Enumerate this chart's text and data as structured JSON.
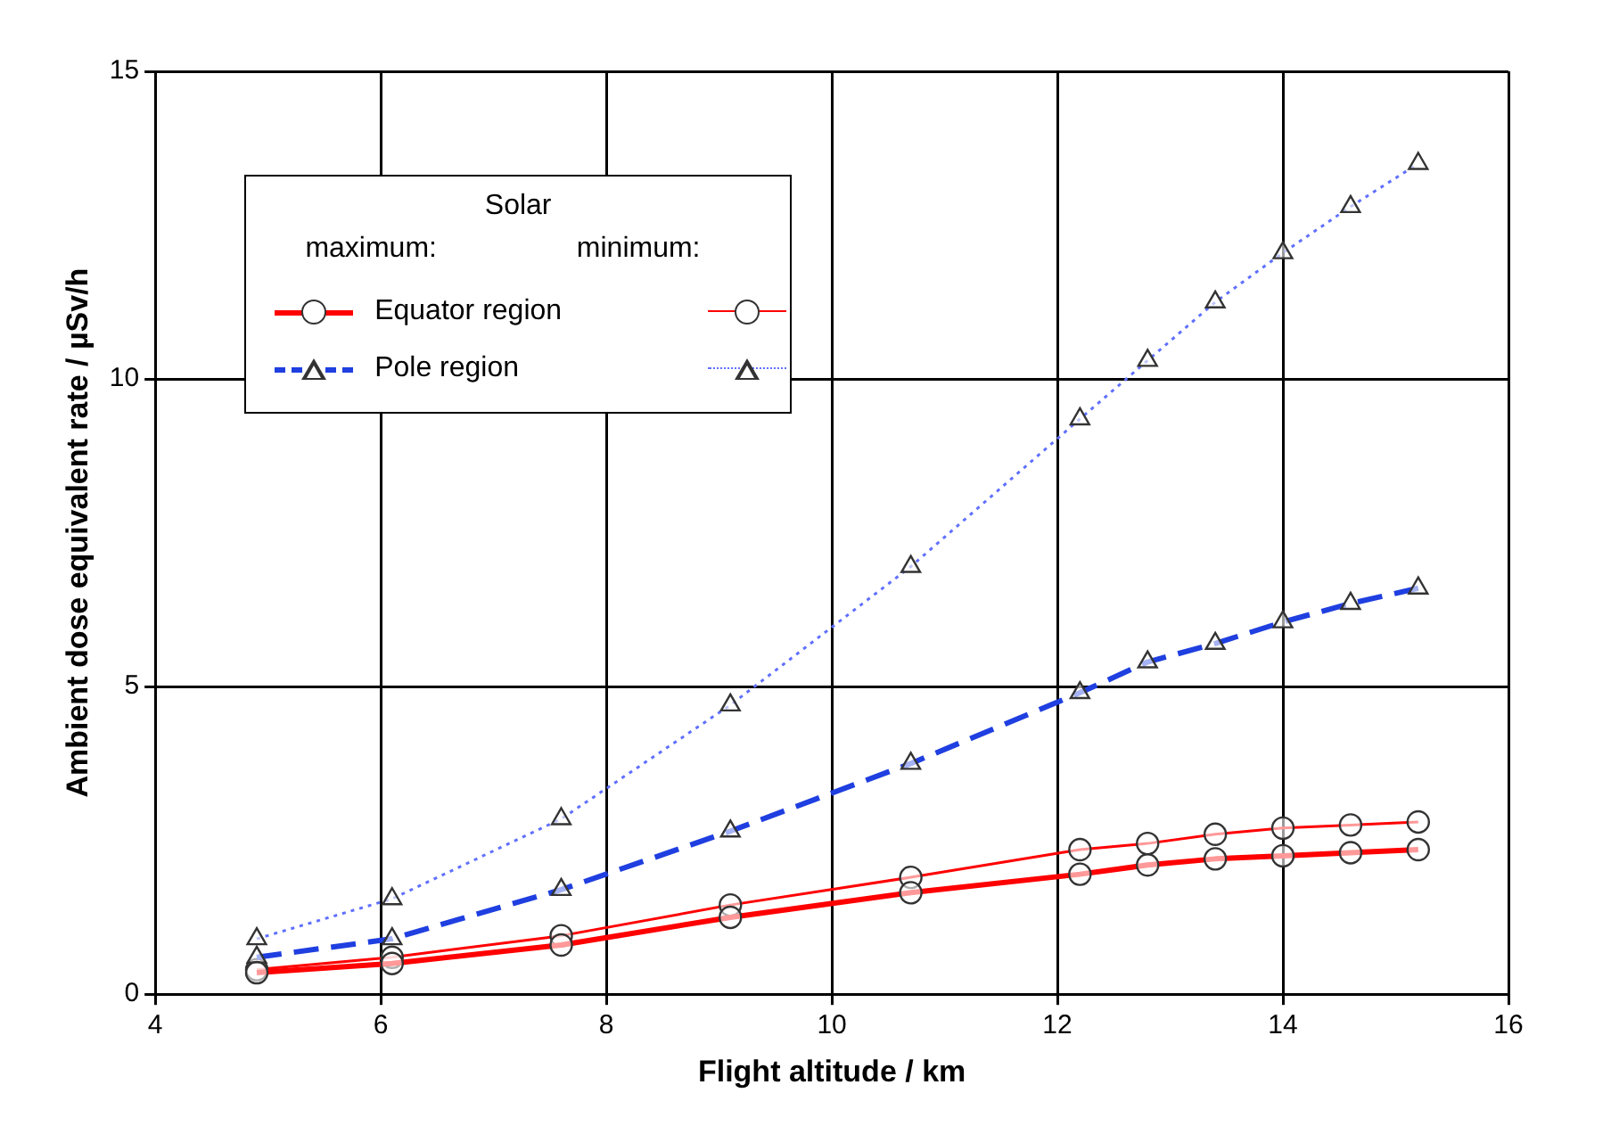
{
  "chart_data": {
    "type": "line",
    "xlabel": "Flight altitude / km",
    "ylabel": "Ambient dose equivalent rate / µSv/h",
    "legend_title": "Solar",
    "annotations": [
      "maximum:",
      "minimum:"
    ],
    "x": [
      4.9,
      6.1,
      7.6,
      9.1,
      10.7,
      12.2,
      12.8,
      13.4,
      14.0,
      14.6,
      15.2
    ],
    "xlim": [
      4,
      16
    ],
    "xticks": [
      4,
      6,
      8,
      10,
      12,
      14,
      16
    ],
    "ylim": [
      0,
      15
    ],
    "yticks": [
      0,
      5,
      10,
      15
    ],
    "grid": true,
    "legend": "top left",
    "series": [
      {
        "name": "Equator region",
        "color": "#ff0000",
        "marker": "circle",
        "line_style": "solid",
        "values": [
          0.35,
          0.5,
          0.8,
          1.25,
          1.65,
          1.95,
          2.1,
          2.2,
          2.25,
          2.3,
          2.35
        ]
      },
      {
        "name": "Pole region",
        "color": "#1f3fe0",
        "marker": "triangle",
        "line_style": "dashed",
        "values": [
          0.6,
          0.9,
          1.7,
          2.65,
          3.75,
          4.9,
          5.4,
          5.7,
          6.05,
          6.35,
          6.6
        ]
      },
      {
        "color": "#ff0000",
        "marker": "circle",
        "line_style": "solid",
        "values": [
          0.4,
          0.6,
          0.95,
          1.45,
          1.9,
          2.35,
          2.45,
          2.6,
          2.7,
          2.75,
          2.8
        ]
      },
      {
        "color": "#6070ff",
        "marker": "triangle",
        "line_style": "dotted",
        "values": [
          0.9,
          1.55,
          2.85,
          4.7,
          6.95,
          9.35,
          10.3,
          11.25,
          12.05,
          12.8,
          13.5
        ]
      }
    ]
  }
}
